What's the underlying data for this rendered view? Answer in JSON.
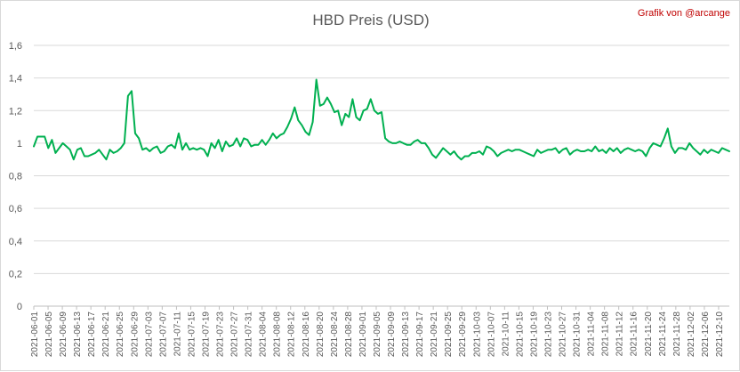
{
  "chart_data": {
    "type": "line",
    "title": "HBD Preis (USD)",
    "xlabel": "",
    "ylabel": "",
    "ylim": [
      0,
      1.6
    ],
    "y_ticks": [
      "0",
      "0,2",
      "0,4",
      "0,6",
      "0,8",
      "1",
      "1,2",
      "1,4",
      "1,6"
    ],
    "y_tick_values": [
      0,
      0.2,
      0.4,
      0.6,
      0.8,
      1.0,
      1.2,
      1.4,
      1.6
    ],
    "grid": "horizontal",
    "line_color": "#00b050",
    "x_start": "2021-06-01",
    "x_end": "2021-12-13",
    "x_ticks": [
      "2021-06-01",
      "2021-06-05",
      "2021-06-09",
      "2021-06-13",
      "2021-06-17",
      "2021-06-21",
      "2021-06-25",
      "2021-06-29",
      "2021-07-03",
      "2021-07-07",
      "2021-07-11",
      "2021-07-15",
      "2021-07-19",
      "2021-07-23",
      "2021-07-27",
      "2021-07-31",
      "2021-08-04",
      "2021-08-08",
      "2021-08-12",
      "2021-08-16",
      "2021-08-20",
      "2021-08-24",
      "2021-08-28",
      "2021-09-01",
      "2021-09-05",
      "2021-09-09",
      "2021-09-13",
      "2021-09-17",
      "2021-09-21",
      "2021-09-25",
      "2021-09-29",
      "2021-10-03",
      "2021-10-07",
      "2021-10-11",
      "2021-10-15",
      "2021-10-19",
      "2021-10-23",
      "2021-10-27",
      "2021-10-31",
      "2021-11-04",
      "2021-11-08",
      "2021-11-12",
      "2021-11-16",
      "2021-11-20",
      "2021-11-24",
      "2021-11-28",
      "2021-12-02",
      "2021-12-06",
      "2021-12-10"
    ],
    "values": [
      0.98,
      1.04,
      1.04,
      1.04,
      0.97,
      1.02,
      0.94,
      0.97,
      1.0,
      0.98,
      0.96,
      0.9,
      0.96,
      0.97,
      0.92,
      0.92,
      0.93,
      0.94,
      0.96,
      0.93,
      0.9,
      0.96,
      0.94,
      0.95,
      0.97,
      1.0,
      1.29,
      1.32,
      1.06,
      1.03,
      0.96,
      0.97,
      0.95,
      0.97,
      0.98,
      0.94,
      0.95,
      0.98,
      0.99,
      0.97,
      1.06,
      0.96,
      1.0,
      0.96,
      0.97,
      0.96,
      0.97,
      0.96,
      0.92,
      1.0,
      0.97,
      1.02,
      0.95,
      1.01,
      0.98,
      0.99,
      1.03,
      0.98,
      1.03,
      1.02,
      0.98,
      0.99,
      0.99,
      1.02,
      0.99,
      1.02,
      1.06,
      1.03,
      1.05,
      1.06,
      1.1,
      1.15,
      1.22,
      1.14,
      1.11,
      1.07,
      1.05,
      1.13,
      1.39,
      1.23,
      1.24,
      1.28,
      1.24,
      1.19,
      1.2,
      1.11,
      1.18,
      1.16,
      1.27,
      1.16,
      1.14,
      1.2,
      1.21,
      1.27,
      1.2,
      1.18,
      1.19,
      1.03,
      1.01,
      1.0,
      1.0,
      1.01,
      1.0,
      0.99,
      0.99,
      1.01,
      1.02,
      1.0,
      1.0,
      0.97,
      0.93,
      0.91,
      0.94,
      0.97,
      0.95,
      0.93,
      0.95,
      0.92,
      0.9,
      0.92,
      0.92,
      0.94,
      0.94,
      0.95,
      0.93,
      0.98,
      0.97,
      0.95,
      0.92,
      0.94,
      0.95,
      0.96,
      0.95,
      0.96,
      0.96,
      0.95,
      0.94,
      0.93,
      0.92,
      0.96,
      0.94,
      0.95,
      0.96,
      0.96,
      0.97,
      0.94,
      0.96,
      0.97,
      0.93,
      0.95,
      0.96,
      0.95,
      0.95,
      0.96,
      0.95,
      0.98,
      0.95,
      0.96,
      0.94,
      0.97,
      0.95,
      0.97,
      0.94,
      0.96,
      0.97,
      0.96,
      0.95,
      0.96,
      0.95,
      0.92,
      0.97,
      1.0,
      0.99,
      0.98,
      1.03,
      1.09,
      0.98,
      0.94,
      0.97,
      0.97,
      0.96,
      1.0,
      0.97,
      0.95,
      0.93,
      0.96,
      0.94,
      0.96,
      0.95,
      0.94,
      0.97,
      0.96,
      0.95
    ]
  },
  "credit": "Grafik von @arcange"
}
